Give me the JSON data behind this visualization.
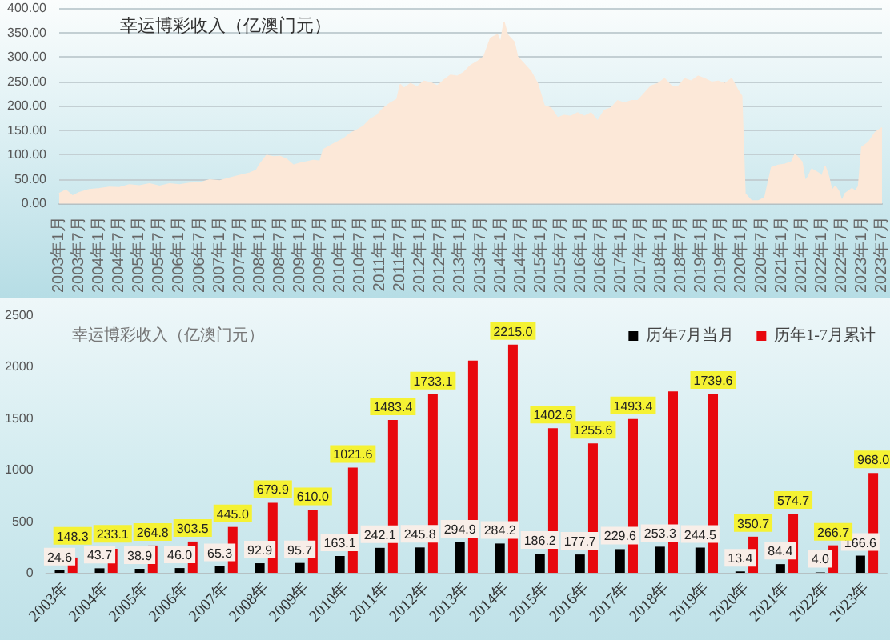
{
  "chart_data": [
    {
      "type": "area",
      "title": "幸运博彩收入（亿澳门元）",
      "color": "#fce8d8",
      "marker": "none",
      "grid": "y",
      "x": [
        "2003-01",
        "2003-03",
        "2003-05",
        "2003-07",
        "2003-10",
        "2004-01",
        "2004-04",
        "2004-07",
        "2004-10",
        "2005-01",
        "2005-04",
        "2005-07",
        "2005-10",
        "2006-01",
        "2006-04",
        "2006-07",
        "2006-10",
        "2007-01",
        "2007-04",
        "2007-07",
        "2007-10",
        "2007-12",
        "2008-01",
        "2008-03",
        "2008-05",
        "2008-07",
        "2008-09",
        "2008-11",
        "2009-01",
        "2009-03",
        "2009-05",
        "2009-07",
        "2009-08",
        "2009-10",
        "2009-12",
        "2010-02",
        "2010-04",
        "2010-06",
        "2010-08",
        "2010-10",
        "2010-12",
        "2011-02",
        "2011-04",
        "2011-06",
        "2011-07",
        "2011-08",
        "2011-10",
        "2011-12",
        "2012-02",
        "2012-04",
        "2012-06",
        "2012-08",
        "2012-10",
        "2012-12",
        "2013-02",
        "2013-04",
        "2013-06",
        "2013-08",
        "2013-10",
        "2013-12",
        "2014-01",
        "2014-02",
        "2014-03",
        "2014-05",
        "2014-06",
        "2014-08",
        "2014-10",
        "2014-12",
        "2015-02",
        "2015-04",
        "2015-06",
        "2015-08",
        "2015-10",
        "2015-12",
        "2016-02",
        "2016-04",
        "2016-06",
        "2016-08",
        "2016-10",
        "2016-12",
        "2017-02",
        "2017-04",
        "2017-06",
        "2017-08",
        "2017-10",
        "2017-12",
        "2018-02",
        "2018-04",
        "2018-06",
        "2018-08",
        "2018-10",
        "2018-12",
        "2019-02",
        "2019-04",
        "2019-06",
        "2019-08",
        "2019-10",
        "2019-12",
        "2020-01",
        "2020-02",
        "2020-04",
        "2020-06",
        "2020-08",
        "2020-10",
        "2020-12",
        "2021-02",
        "2021-04",
        "2021-05",
        "2021-07",
        "2021-08",
        "2021-09",
        "2021-10",
        "2021-12",
        "2022-01",
        "2022-02",
        "2022-03",
        "2022-04",
        "2022-05",
        "2022-06",
        "2022-07",
        "2022-08",
        "2022-10",
        "2022-11",
        "2022-12",
        "2023-01",
        "2023-03",
        "2023-05",
        "2023-07"
      ],
      "values": [
        20,
        27,
        15,
        22,
        28,
        30,
        33,
        32,
        38,
        36,
        40,
        35,
        40,
        38,
        41,
        42,
        48,
        46,
        52,
        57,
        62,
        68,
        80,
        98,
        95,
        96,
        90,
        78,
        82,
        85,
        88,
        86,
        110,
        118,
        125,
        132,
        143,
        150,
        158,
        172,
        180,
        195,
        205,
        213,
        243,
        235,
        245,
        238,
        250,
        247,
        240,
        252,
        262,
        260,
        268,
        282,
        290,
        300,
        338,
        345,
        328,
        370,
        345,
        330,
        300,
        285,
        270,
        245,
        200,
        195,
        175,
        180,
        178,
        185,
        178,
        185,
        168,
        190,
        195,
        210,
        205,
        210,
        210,
        225,
        240,
        245,
        255,
        240,
        238,
        255,
        250,
        260,
        255,
        248,
        250,
        245,
        255,
        230,
        220,
        20,
        5,
        5,
        12,
        73,
        78,
        80,
        85,
        100,
        85,
        45,
        55,
        70,
        62,
        55,
        75,
        55,
        25,
        35,
        25,
        4,
        20,
        30,
        25,
        35,
        115,
        125,
        145,
        155
      ],
      "xlim": [
        "2003-01",
        "2023-07"
      ],
      "xticks": [
        {
          "value": "2003-01",
          "label": "2003年1月"
        },
        {
          "value": "2003-07",
          "label": "2003年7月"
        },
        {
          "value": "2004-01",
          "label": "2004年1月"
        },
        {
          "value": "2004-07",
          "label": "2004年7月"
        },
        {
          "value": "2005-01",
          "label": "2005年1月"
        },
        {
          "value": "2005-07",
          "label": "2005年7月"
        },
        {
          "value": "2006-01",
          "label": "2006年1月"
        },
        {
          "value": "2006-07",
          "label": "2006年7月"
        },
        {
          "value": "2007-01",
          "label": "2007年1月"
        },
        {
          "value": "2007-07",
          "label": "2007年7月"
        },
        {
          "value": "2008-01",
          "label": "2008年1月"
        },
        {
          "value": "2008-07",
          "label": "2008年7月"
        },
        {
          "value": "2009-01",
          "label": "2009年1月"
        },
        {
          "value": "2009-07",
          "label": "2009年7月"
        },
        {
          "value": "2010-01",
          "label": "2010年1月"
        },
        {
          "value": "2010-07",
          "label": "2010年7月"
        },
        {
          "value": "2011-01",
          "label": "2011年1月"
        },
        {
          "value": "2011-07",
          "label": "2011年7月"
        },
        {
          "value": "2012-01",
          "label": "2012年1月"
        },
        {
          "value": "2012-07",
          "label": "2012年7月"
        },
        {
          "value": "2013-01",
          "label": "2013年1月"
        },
        {
          "value": "2013-07",
          "label": "2013年7月"
        },
        {
          "value": "2014-01",
          "label": "2014年1月"
        },
        {
          "value": "2014-07",
          "label": "2014年7月"
        },
        {
          "value": "2015-01",
          "label": "2015年1月"
        },
        {
          "value": "2015-07",
          "label": "2015年7月"
        },
        {
          "value": "2016-01",
          "label": "2016年1月"
        },
        {
          "value": "2016-07",
          "label": "2016年7月"
        },
        {
          "value": "2017-01",
          "label": "2017年1月"
        },
        {
          "value": "2017-07",
          "label": "2017年7月"
        },
        {
          "value": "2018-01",
          "label": "2018年1月"
        },
        {
          "value": "2018-07",
          "label": "2018年7月"
        },
        {
          "value": "2019-01",
          "label": "2019年1月"
        },
        {
          "value": "2019-07",
          "label": "2019年7月"
        },
        {
          "value": "2020-01",
          "label": "2020年1月"
        },
        {
          "value": "2020-07",
          "label": "2020年7月"
        },
        {
          "value": "2021-01",
          "label": "2021年1月"
        },
        {
          "value": "2021-07",
          "label": "2021年7月"
        },
        {
          "value": "2022-01",
          "label": "2022年1月"
        },
        {
          "value": "2022-07",
          "label": "2022年7月"
        },
        {
          "value": "2023-01",
          "label": "2023年1月"
        },
        {
          "value": "2023-07",
          "label": "2023年7月"
        }
      ],
      "ylim": [
        0,
        400
      ],
      "yticks": [
        {
          "value": 0,
          "label": "0.00"
        },
        {
          "value": 50,
          "label": "50.00"
        },
        {
          "value": 100,
          "label": "100.00"
        },
        {
          "value": 150,
          "label": "150.00"
        },
        {
          "value": 200,
          "label": "200.00"
        },
        {
          "value": 250,
          "label": "250.00"
        },
        {
          "value": 300,
          "label": "300.00"
        },
        {
          "value": 350,
          "label": "350.00"
        },
        {
          "value": 400,
          "label": "400.00"
        }
      ]
    },
    {
      "type": "bar",
      "title": "幸运博彩收入（亿澳门元）",
      "legend": "top right",
      "categories": [
        "2003年",
        "2004年",
        "2005年",
        "2006年",
        "2007年",
        "2008年",
        "2009年",
        "2010年",
        "2011年",
        "2012年",
        "2013年",
        "2014年",
        "2015年",
        "2016年",
        "2017年",
        "2018年",
        "2019年",
        "2020年",
        "2021年",
        "2022年",
        "2023年"
      ],
      "series": [
        {
          "name": "历年7月当月",
          "color": "#000000",
          "values": [
            24.6,
            43.7,
            38.9,
            46.0,
            65.3,
            92.9,
            95.7,
            163.1,
            242.1,
            245.8,
            294.9,
            284.2,
            186.2,
            177.7,
            229.6,
            253.3,
            244.5,
            13.4,
            84.4,
            4.0,
            166.6
          ],
          "value_labels": [
            "24.6",
            "43.7",
            "38.9",
            "46.0",
            "65.3",
            "92.9",
            "95.7",
            "163.1",
            "242.1",
            "245.8",
            "294.9",
            "284.2",
            "186.2",
            "177.7",
            "229.6",
            "253.3",
            "244.5",
            "13.4",
            "84.4",
            "4.0",
            "166.6"
          ]
        },
        {
          "name": "历年1-7月累计",
          "color": "#e8080e",
          "values": [
            148.3,
            233.1,
            264.8,
            303.5,
            445.0,
            679.9,
            610.0,
            1021.6,
            1483.4,
            1733.1,
            2060,
            2215.0,
            1402.6,
            1255.6,
            1493.4,
            1760,
            1739.6,
            350.7,
            574.7,
            266.7,
            968.0
          ],
          "value_labels": [
            "148.3",
            "233.1",
            "264.8",
            "303.5",
            "445.0",
            "679.9",
            "610.0",
            "1021.6",
            "1483.4",
            "1733.1",
            null,
            "2215.0",
            "1402.6",
            "1255.6",
            "1493.4",
            null,
            "1739.6",
            "350.7",
            "574.7",
            "266.7",
            "968.0"
          ]
        }
      ],
      "ylim": [
        0,
        2500
      ],
      "yticks": [
        0,
        500,
        1000,
        1500,
        2000,
        2500
      ]
    }
  ]
}
